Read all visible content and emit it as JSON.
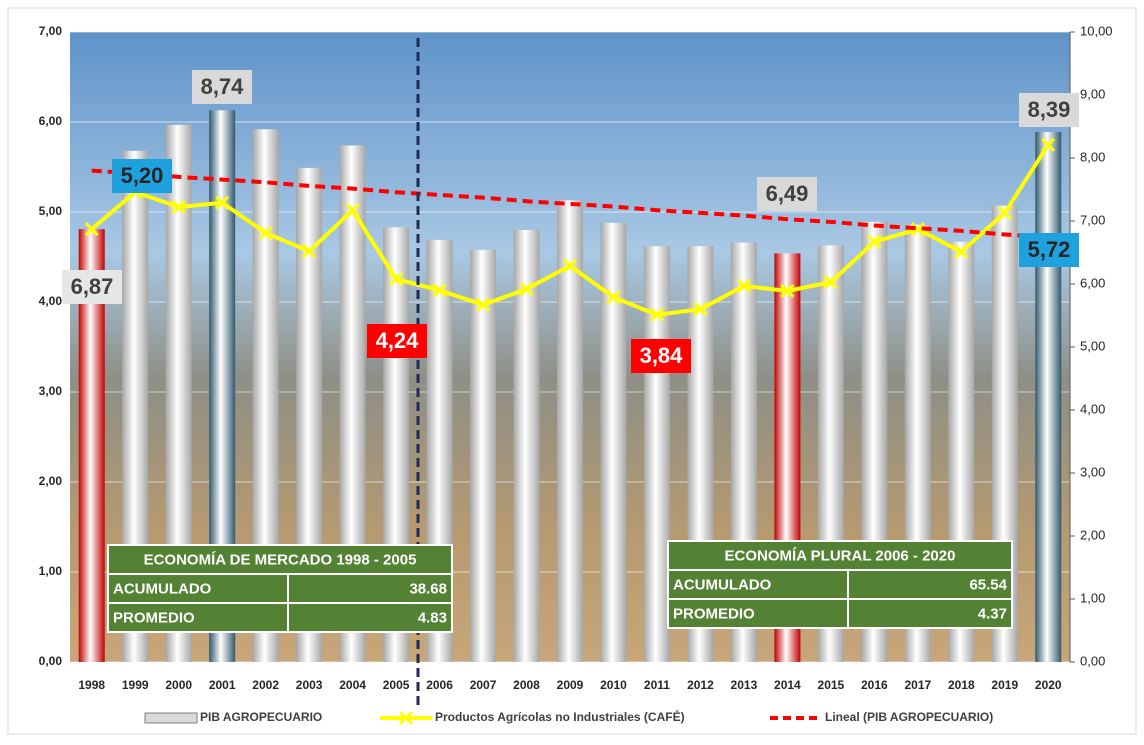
{
  "chart_data": {
    "type": "bar_line",
    "categories": [
      "1998",
      "1999",
      "2000",
      "2001",
      "2002",
      "2003",
      "2004",
      "2005",
      "2006",
      "2007",
      "2008",
      "2009",
      "2010",
      "2011",
      "2012",
      "2013",
      "2014",
      "2015",
      "2016",
      "2017",
      "2018",
      "2019",
      "2020"
    ],
    "series": [
      {
        "name": "PIB AGROPECUARIO",
        "type": "bar",
        "axis": "y",
        "values": [
          4.81,
          5.68,
          5.97,
          6.13,
          5.92,
          5.49,
          5.74,
          4.83,
          4.69,
          4.58,
          4.8,
          5.13,
          4.88,
          4.62,
          4.62,
          4.66,
          4.54,
          4.63,
          4.89,
          4.86,
          4.67,
          5.07,
          5.89
        ],
        "colors": [
          "#c00000",
          "#a6a6a6",
          "#a6a6a6",
          "#31596e",
          "#a6a6a6",
          "#a6a6a6",
          "#a6a6a6",
          "#a6a6a6",
          "#a6a6a6",
          "#a6a6a6",
          "#a6a6a6",
          "#a6a6a6",
          "#a6a6a6",
          "#a6a6a6",
          "#a6a6a6",
          "#a6a6a6",
          "#c00000",
          "#a6a6a6",
          "#a6a6a6",
          "#a6a6a6",
          "#a6a6a6",
          "#a6a6a6",
          "#31596e"
        ]
      },
      {
        "name": "Productos Agrícolas no Industriales (CAFÉ)",
        "type": "line",
        "axis": "y2",
        "color": "#ffff00",
        "values": [
          6.87,
          7.46,
          7.22,
          7.29,
          6.81,
          6.52,
          7.17,
          6.08,
          5.9,
          5.67,
          5.92,
          6.29,
          5.79,
          5.51,
          5.6,
          5.97,
          5.89,
          6.03,
          6.67,
          6.87,
          6.51,
          7.13,
          8.21
        ]
      },
      {
        "name": "Lineal (PIB AGROPECUARIO)",
        "type": "trend",
        "axis": "y",
        "color": "#ff0000",
        "values": [
          5.46,
          5.43,
          5.39,
          5.36,
          5.33,
          5.29,
          5.26,
          5.22,
          5.19,
          5.16,
          5.12,
          5.09,
          5.06,
          5.02,
          4.99,
          4.96,
          4.92,
          4.89,
          4.85,
          4.82,
          4.79,
          4.75,
          4.72
        ]
      }
    ],
    "ylim": [
      0,
      7
    ],
    "yticks": [
      {
        "value": 0,
        "label": "0,00"
      },
      {
        "value": 1,
        "label": "1,00"
      },
      {
        "value": 2,
        "label": "2,00"
      },
      {
        "value": 3,
        "label": "3,00"
      },
      {
        "value": 4,
        "label": "4,00"
      },
      {
        "value": 5,
        "label": "5,00"
      },
      {
        "value": 6,
        "label": "6,00"
      },
      {
        "value": 7,
        "label": "7,00"
      }
    ],
    "y2lim": [
      0,
      10
    ],
    "y2ticks": [
      {
        "value": 0,
        "label": "0,00"
      },
      {
        "value": 1,
        "label": "1,00"
      },
      {
        "value": 2,
        "label": "2,00"
      },
      {
        "value": 3,
        "label": "3,00"
      },
      {
        "value": 4,
        "label": "4,00"
      },
      {
        "value": 5,
        "label": "5,00"
      },
      {
        "value": 6,
        "label": "6,00"
      },
      {
        "value": 7,
        "label": "7,00"
      },
      {
        "value": 8,
        "label": "8,00"
      },
      {
        "value": 9,
        "label": "9,00"
      },
      {
        "value": 10,
        "label": "10,00"
      }
    ],
    "grid": true,
    "legend": "bottom",
    "annotations": [
      "6,87",
      "5,20",
      "8,74",
      "4,24",
      "3,84",
      "6,49",
      "8,39",
      "5,72"
    ],
    "tables": [
      {
        "title": "ECONOMÍA DE MERCADO 1998 - 2005",
        "rows": [
          [
            "ACUMULADO",
            "38.68"
          ],
          [
            "PROMEDIO",
            "4.83"
          ]
        ]
      },
      {
        "title": "ECONOMÍA PLURAL 2006 - 2020",
        "rows": [
          [
            "ACUMULADO",
            "65.54"
          ],
          [
            "PROMEDIO",
            "4.37"
          ]
        ]
      }
    ]
  }
}
